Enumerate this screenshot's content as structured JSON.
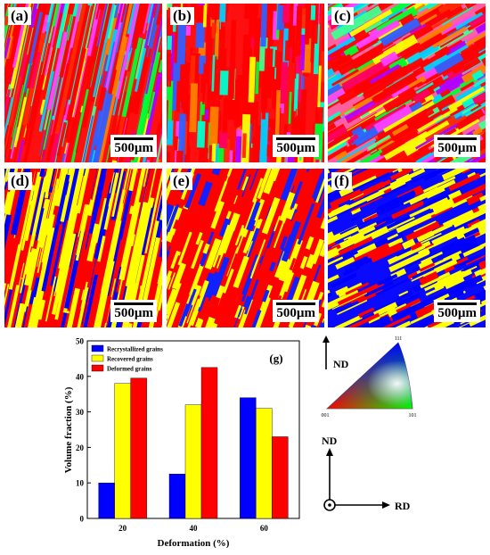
{
  "panels": [
    {
      "label": "(a)",
      "scale": "500µm",
      "kind": "ipf",
      "angle": -78
    },
    {
      "label": "(b)",
      "scale": "500µm",
      "kind": "ipf",
      "angle": -88
    },
    {
      "label": "(c)",
      "scale": "500µm",
      "kind": "ipf",
      "angle": -30
    },
    {
      "label": "(d)",
      "scale": "500µm",
      "kind": "grains",
      "angle": -78
    },
    {
      "label": "(e)",
      "scale": "500µm",
      "kind": "grains",
      "angle": -70
    },
    {
      "label": "(f)",
      "scale": "500µm",
      "kind": "grains",
      "angle": -25
    }
  ],
  "chart_data": {
    "type": "bar",
    "panel_label": "(g)",
    "categories": [
      "20",
      "40",
      "60"
    ],
    "series": [
      {
        "name": "Recrystallized grains",
        "color": "#0000ff",
        "values": [
          10,
          12.5,
          34
        ]
      },
      {
        "name": "Recovered grains",
        "color": "#ffff00",
        "values": [
          38,
          32,
          31
        ]
      },
      {
        "name": "Deformed grains",
        "color": "#ff0000",
        "values": [
          39.5,
          42.5,
          23
        ]
      }
    ],
    "xlabel": "Deformation (%)",
    "ylabel": "Volume fraction (%)",
    "ylim": [
      0,
      50
    ],
    "yticks": [
      "0",
      "10",
      "20",
      "30",
      "40",
      "50"
    ],
    "legend_position": "top-left",
    "grid": false
  },
  "ipf_key": {
    "corners": [
      "111",
      "001",
      "101"
    ],
    "nd_label": "ND",
    "axes": {
      "vertical": "ND",
      "horizontal": "RD"
    }
  },
  "colors": {
    "blue": "#0000ff",
    "yellow": "#ffff00",
    "red": "#ff0000"
  }
}
